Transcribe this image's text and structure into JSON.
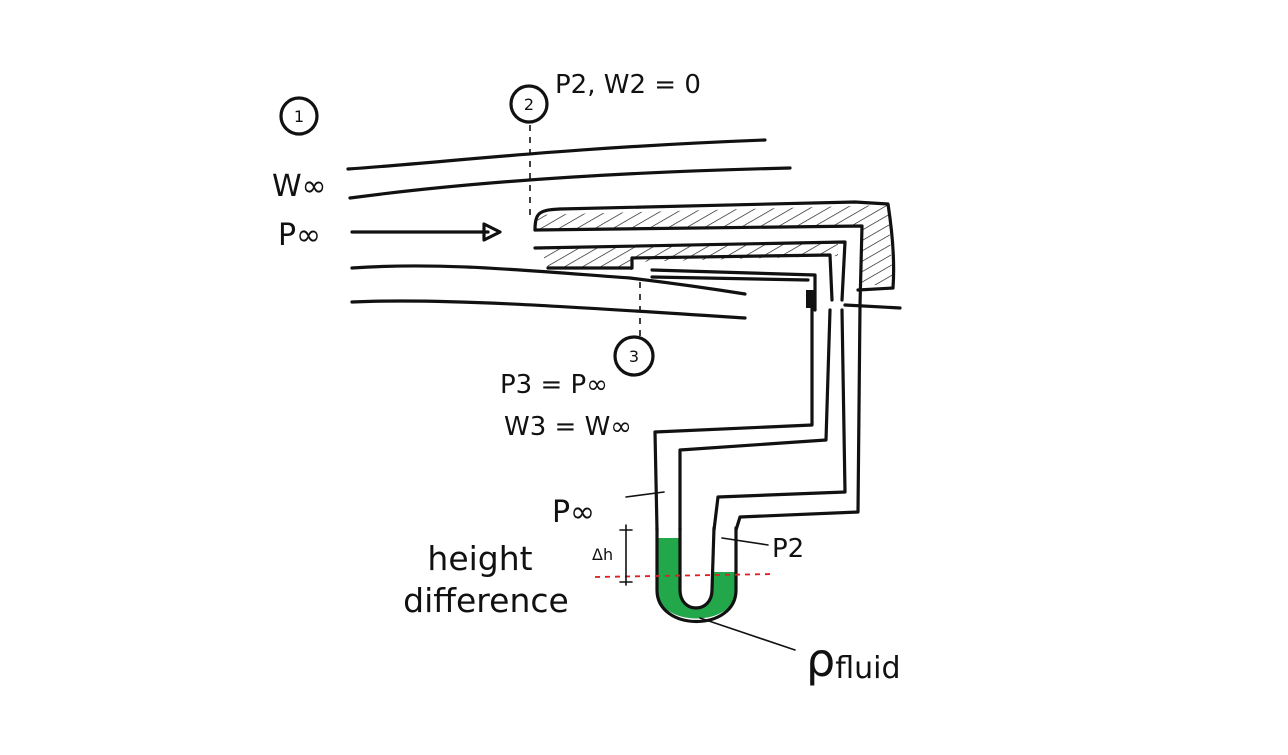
{
  "labels": {
    "station1": "1",
    "station2": "2",
    "station3": "3",
    "w_inf": "W∞",
    "p_inf_left": "P∞",
    "p2_w2": "P2, W2 = 0",
    "p3": "P3 = P∞",
    "w3": "W3 = W∞",
    "p_inf_tube": "P∞",
    "p2_tube": "P2",
    "dh": "Δh",
    "height_difference_line1": "height",
    "height_difference_line2": "difference",
    "rho": "ρ",
    "rho_sub": "fluid"
  },
  "colors": {
    "ink": "#111111",
    "manometer_fluid": "#22a84a",
    "reference_line": "#e02020"
  }
}
